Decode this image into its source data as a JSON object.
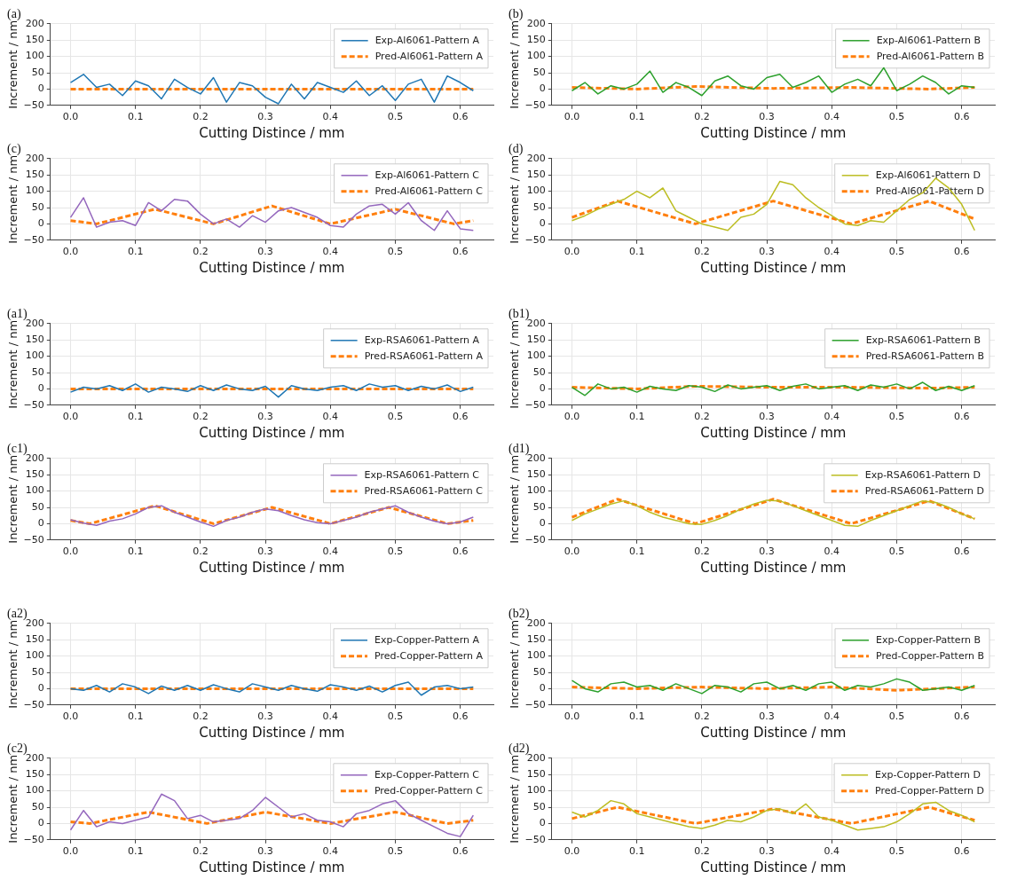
{
  "chart_data": [
    {
      "type": "line",
      "title": "(a)",
      "xlabel": "Cutting Distince / mm",
      "ylabel": "Increment / nm",
      "x": [
        0,
        0.02,
        0.04,
        0.06,
        0.08,
        0.1,
        0.12,
        0.14,
        0.16,
        0.18,
        0.2,
        0.22,
        0.24,
        0.26,
        0.28,
        0.3,
        0.32,
        0.34,
        0.36,
        0.38,
        0.4,
        0.42,
        0.44,
        0.46,
        0.48,
        0.5,
        0.52,
        0.54,
        0.56,
        0.58,
        0.6,
        0.62
      ],
      "xlim": [
        -0.031,
        0.651
      ],
      "xticks": [
        {
          "value": 0,
          "label": "0.0"
        },
        {
          "value": 0.1,
          "label": "0.1"
        },
        {
          "value": 0.2,
          "label": "0.2"
        },
        {
          "value": 0.3,
          "label": "0.3"
        },
        {
          "value": 0.4,
          "label": "0.4"
        },
        {
          "value": 0.5,
          "label": "0.5"
        },
        {
          "value": 0.6,
          "label": "0.6"
        }
      ],
      "ylim": [
        -50,
        200
      ],
      "yticks": [
        -50,
        0,
        50,
        100,
        150,
        200
      ],
      "grid": true,
      "legend": "top right",
      "series": [
        {
          "name": "Exp-Al6061-Pattern A",
          "color": "#1f77b4",
          "line_style": "solid",
          "values": [
            20,
            45,
            5,
            15,
            -20,
            25,
            10,
            -30,
            30,
            5,
            -15,
            35,
            -40,
            20,
            10,
            -25,
            -45,
            15,
            -30,
            20,
            5,
            -10,
            25,
            -20,
            10,
            -35,
            15,
            30,
            -40,
            40,
            20,
            -5
          ]
        },
        {
          "name": "Pred-Al6061-Pattern A",
          "color": "#ff7f0e",
          "line_style": "dashed",
          "x": [
            0,
            0.31,
            0.62
          ],
          "values": [
            0,
            0,
            0
          ]
        }
      ]
    },
    {
      "type": "line",
      "title": "(b)",
      "xlabel": "Cutting Distince / mm",
      "ylabel": "Increment / nm",
      "x": [
        0,
        0.02,
        0.04,
        0.06,
        0.08,
        0.1,
        0.12,
        0.14,
        0.16,
        0.18,
        0.2,
        0.22,
        0.24,
        0.26,
        0.28,
        0.3,
        0.32,
        0.34,
        0.36,
        0.38,
        0.4,
        0.42,
        0.44,
        0.46,
        0.48,
        0.5,
        0.52,
        0.54,
        0.56,
        0.58,
        0.6,
        0.62
      ],
      "xlim": [
        -0.031,
        0.651
      ],
      "xticks": [
        {
          "value": 0,
          "label": "0.0"
        },
        {
          "value": 0.1,
          "label": "0.1"
        },
        {
          "value": 0.2,
          "label": "0.2"
        },
        {
          "value": 0.3,
          "label": "0.3"
        },
        {
          "value": 0.4,
          "label": "0.4"
        },
        {
          "value": 0.5,
          "label": "0.5"
        },
        {
          "value": 0.6,
          "label": "0.6"
        }
      ],
      "ylim": [
        -50,
        200
      ],
      "yticks": [
        -50,
        0,
        50,
        100,
        150,
        200
      ],
      "grid": true,
      "legend": "top right",
      "series": [
        {
          "name": "Exp-Al6061-Pattern B",
          "color": "#2ca02c",
          "line_style": "solid",
          "values": [
            -5,
            20,
            -15,
            10,
            0,
            15,
            55,
            -10,
            20,
            5,
            -20,
            25,
            40,
            10,
            0,
            35,
            45,
            5,
            20,
            40,
            -10,
            15,
            30,
            10,
            65,
            -5,
            15,
            40,
            20,
            -15,
            10,
            5
          ]
        },
        {
          "name": "Pred-Al6061-Pattern B",
          "color": "#ff7f0e",
          "line_style": "dashed",
          "x": [
            0,
            0.1,
            0.19,
            0.31,
            0.43,
            0.55,
            0.62
          ],
          "values": [
            5,
            0,
            8,
            2,
            5,
            0,
            5
          ]
        }
      ]
    },
    {
      "type": "line",
      "title": "(c)",
      "xlabel": "Cutting Distince / mm",
      "ylabel": "Increment / nm",
      "x": [
        0,
        0.02,
        0.04,
        0.06,
        0.08,
        0.1,
        0.12,
        0.14,
        0.16,
        0.18,
        0.2,
        0.22,
        0.24,
        0.26,
        0.28,
        0.3,
        0.32,
        0.34,
        0.36,
        0.38,
        0.4,
        0.42,
        0.44,
        0.46,
        0.48,
        0.5,
        0.52,
        0.54,
        0.56,
        0.58,
        0.6,
        0.62
      ],
      "xlim": [
        -0.031,
        0.651
      ],
      "xticks": [
        {
          "value": 0,
          "label": "0.0"
        },
        {
          "value": 0.1,
          "label": "0.1"
        },
        {
          "value": 0.2,
          "label": "0.2"
        },
        {
          "value": 0.3,
          "label": "0.3"
        },
        {
          "value": 0.4,
          "label": "0.4"
        },
        {
          "value": 0.5,
          "label": "0.5"
        },
        {
          "value": 0.6,
          "label": "0.6"
        }
      ],
      "ylim": [
        -50,
        200
      ],
      "yticks": [
        -50,
        0,
        50,
        100,
        150,
        200
      ],
      "grid": true,
      "legend": "top right",
      "series": [
        {
          "name": "Exp-Al6061-Pattern C",
          "color": "#9467bd",
          "line_style": "solid",
          "values": [
            20,
            80,
            -10,
            5,
            10,
            -5,
            65,
            40,
            75,
            70,
            30,
            0,
            15,
            -10,
            25,
            5,
            40,
            50,
            35,
            20,
            -5,
            -10,
            30,
            55,
            60,
            30,
            65,
            10,
            -20,
            40,
            -15,
            -20
          ]
        },
        {
          "name": "Pred-Al6061-Pattern C",
          "color": "#ff7f0e",
          "line_style": "dashed",
          "x": [
            0,
            0.04,
            0.13,
            0.22,
            0.31,
            0.4,
            0.5,
            0.59,
            0.62
          ],
          "values": [
            10,
            0,
            45,
            0,
            55,
            0,
            45,
            0,
            10
          ]
        }
      ]
    },
    {
      "type": "line",
      "title": "(d)",
      "xlabel": "Cutting Distince / mm",
      "ylabel": "Increment / nm",
      "x": [
        0,
        0.02,
        0.04,
        0.06,
        0.08,
        0.1,
        0.12,
        0.14,
        0.16,
        0.18,
        0.2,
        0.22,
        0.24,
        0.26,
        0.28,
        0.3,
        0.32,
        0.34,
        0.36,
        0.38,
        0.4,
        0.42,
        0.44,
        0.46,
        0.48,
        0.5,
        0.52,
        0.54,
        0.56,
        0.58,
        0.6,
        0.62
      ],
      "xlim": [
        -0.031,
        0.651
      ],
      "xticks": [
        {
          "value": 0,
          "label": "0.0"
        },
        {
          "value": 0.1,
          "label": "0.1"
        },
        {
          "value": 0.2,
          "label": "0.2"
        },
        {
          "value": 0.3,
          "label": "0.3"
        },
        {
          "value": 0.4,
          "label": "0.4"
        },
        {
          "value": 0.5,
          "label": "0.5"
        },
        {
          "value": 0.6,
          "label": "0.6"
        }
      ],
      "ylim": [
        -50,
        200
      ],
      "yticks": [
        -50,
        0,
        50,
        100,
        150,
        200
      ],
      "grid": true,
      "legend": "top right",
      "series": [
        {
          "name": "Exp-Al6061-Pattern D",
          "color": "#bcbd22",
          "line_style": "solid",
          "values": [
            10,
            25,
            45,
            60,
            75,
            100,
            80,
            110,
            40,
            20,
            0,
            -10,
            -20,
            20,
            30,
            60,
            130,
            120,
            80,
            50,
            25,
            0,
            -5,
            10,
            5,
            40,
            75,
            95,
            140,
            110,
            60,
            -20
          ]
        },
        {
          "name": "Pred-Al6061-Pattern D",
          "color": "#ff7f0e",
          "line_style": "dashed",
          "x": [
            0,
            0.07,
            0.19,
            0.31,
            0.43,
            0.55,
            0.62
          ],
          "values": [
            20,
            70,
            0,
            70,
            0,
            70,
            15
          ]
        }
      ]
    },
    {
      "type": "line",
      "title": "(a1)",
      "xlabel": "Cutting Distince / mm",
      "ylabel": "Increment / nm",
      "x": [
        0,
        0.02,
        0.04,
        0.06,
        0.08,
        0.1,
        0.12,
        0.14,
        0.16,
        0.18,
        0.2,
        0.22,
        0.24,
        0.26,
        0.28,
        0.3,
        0.32,
        0.34,
        0.36,
        0.38,
        0.4,
        0.42,
        0.44,
        0.46,
        0.48,
        0.5,
        0.52,
        0.54,
        0.56,
        0.58,
        0.6,
        0.62
      ],
      "xlim": [
        -0.031,
        0.651
      ],
      "xticks": [
        {
          "value": 0,
          "label": "0.0"
        },
        {
          "value": 0.1,
          "label": "0.1"
        },
        {
          "value": 0.2,
          "label": "0.2"
        },
        {
          "value": 0.3,
          "label": "0.3"
        },
        {
          "value": 0.4,
          "label": "0.4"
        },
        {
          "value": 0.5,
          "label": "0.5"
        },
        {
          "value": 0.6,
          "label": "0.6"
        }
      ],
      "ylim": [
        -50,
        200
      ],
      "yticks": [
        -50,
        0,
        50,
        100,
        150,
        200
      ],
      "grid": true,
      "legend": "top right",
      "series": [
        {
          "name": "Exp-RSA6061-Pattern A",
          "color": "#1f77b4",
          "line_style": "solid",
          "values": [
            -10,
            5,
            0,
            10,
            -5,
            15,
            -10,
            5,
            0,
            -8,
            10,
            -5,
            12,
            0,
            -5,
            8,
            -25,
            10,
            0,
            -5,
            5,
            10,
            -5,
            15,
            5,
            10,
            -5,
            8,
            0,
            12,
            -8,
            5
          ]
        },
        {
          "name": "Pred-RSA6061-Pattern A",
          "color": "#ff7f0e",
          "line_style": "dashed",
          "x": [
            0,
            0.31,
            0.62
          ],
          "values": [
            0,
            0,
            0
          ]
        }
      ]
    },
    {
      "type": "line",
      "title": "(b1)",
      "xlabel": "Cutting Distince / mm",
      "ylabel": "Increment / nm",
      "x": [
        0,
        0.02,
        0.04,
        0.06,
        0.08,
        0.1,
        0.12,
        0.14,
        0.16,
        0.18,
        0.2,
        0.22,
        0.24,
        0.26,
        0.28,
        0.3,
        0.32,
        0.34,
        0.36,
        0.38,
        0.4,
        0.42,
        0.44,
        0.46,
        0.48,
        0.5,
        0.52,
        0.54,
        0.56,
        0.58,
        0.6,
        0.62
      ],
      "xlim": [
        -0.031,
        0.651
      ],
      "xticks": [
        {
          "value": 0,
          "label": "0.0"
        },
        {
          "value": 0.1,
          "label": "0.1"
        },
        {
          "value": 0.2,
          "label": "0.2"
        },
        {
          "value": 0.3,
          "label": "0.3"
        },
        {
          "value": 0.4,
          "label": "0.4"
        },
        {
          "value": 0.5,
          "label": "0.5"
        },
        {
          "value": 0.6,
          "label": "0.6"
        }
      ],
      "ylim": [
        -50,
        200
      ],
      "yticks": [
        -50,
        0,
        50,
        100,
        150,
        200
      ],
      "grid": true,
      "legend": "top right",
      "series": [
        {
          "name": "Exp-RSA6061-Pattern B",
          "color": "#2ca02c",
          "line_style": "solid",
          "values": [
            5,
            -20,
            15,
            0,
            5,
            -10,
            8,
            0,
            -5,
            10,
            5,
            -8,
            12,
            0,
            5,
            10,
            -5,
            8,
            15,
            0,
            5,
            10,
            -5,
            12,
            5,
            15,
            0,
            20,
            -5,
            8,
            -5,
            10
          ]
        },
        {
          "name": "Pred-RSA6061-Pattern B",
          "color": "#ff7f0e",
          "line_style": "dashed",
          "x": [
            0,
            0.1,
            0.19,
            0.31,
            0.43,
            0.55,
            0.62
          ],
          "values": [
            5,
            0,
            8,
            5,
            5,
            2,
            5
          ]
        }
      ]
    },
    {
      "type": "line",
      "title": "(c1)",
      "xlabel": "Cutting Distince / mm",
      "ylabel": "Increment / nm",
      "x": [
        0,
        0.02,
        0.04,
        0.06,
        0.08,
        0.1,
        0.12,
        0.14,
        0.16,
        0.18,
        0.2,
        0.22,
        0.24,
        0.26,
        0.28,
        0.3,
        0.32,
        0.34,
        0.36,
        0.38,
        0.4,
        0.42,
        0.44,
        0.46,
        0.48,
        0.5,
        0.52,
        0.54,
        0.56,
        0.58,
        0.6,
        0.62
      ],
      "xlim": [
        -0.031,
        0.651
      ],
      "xticks": [
        {
          "value": 0,
          "label": "0.0"
        },
        {
          "value": 0.1,
          "label": "0.1"
        },
        {
          "value": 0.2,
          "label": "0.2"
        },
        {
          "value": 0.3,
          "label": "0.3"
        },
        {
          "value": 0.4,
          "label": "0.4"
        },
        {
          "value": 0.5,
          "label": "0.5"
        },
        {
          "value": 0.6,
          "label": "0.6"
        }
      ],
      "ylim": [
        -50,
        200
      ],
      "yticks": [
        -50,
        0,
        50,
        100,
        150,
        200
      ],
      "grid": true,
      "legend": "top right",
      "series": [
        {
          "name": "Exp-RSA6061-Pattern C",
          "color": "#9467bd",
          "line_style": "solid",
          "values": [
            12,
            2,
            -5,
            8,
            15,
            30,
            50,
            55,
            35,
            20,
            5,
            -8,
            10,
            20,
            35,
            45,
            40,
            25,
            12,
            3,
            0,
            10,
            20,
            35,
            45,
            55,
            35,
            20,
            8,
            0,
            5,
            20
          ]
        },
        {
          "name": "Pred-RSA6061-Pattern C",
          "color": "#ff7f0e",
          "line_style": "dashed",
          "x": [
            0,
            0.03,
            0.13,
            0.22,
            0.31,
            0.4,
            0.49,
            0.58,
            0.62
          ],
          "values": [
            10,
            0,
            55,
            0,
            50,
            0,
            50,
            0,
            10
          ]
        }
      ]
    },
    {
      "type": "line",
      "title": "(d1)",
      "xlabel": "Cutting Distince / mm",
      "ylabel": "Increment / nm",
      "x": [
        0,
        0.02,
        0.04,
        0.06,
        0.08,
        0.1,
        0.12,
        0.14,
        0.16,
        0.18,
        0.2,
        0.22,
        0.24,
        0.26,
        0.28,
        0.3,
        0.32,
        0.34,
        0.36,
        0.38,
        0.4,
        0.42,
        0.44,
        0.46,
        0.48,
        0.5,
        0.52,
        0.54,
        0.56,
        0.58,
        0.6,
        0.62
      ],
      "xlim": [
        -0.031,
        0.651
      ],
      "xticks": [
        {
          "value": 0,
          "label": "0.0"
        },
        {
          "value": 0.1,
          "label": "0.1"
        },
        {
          "value": 0.2,
          "label": "0.2"
        },
        {
          "value": 0.3,
          "label": "0.3"
        },
        {
          "value": 0.4,
          "label": "0.4"
        },
        {
          "value": 0.5,
          "label": "0.5"
        },
        {
          "value": 0.6,
          "label": "0.6"
        }
      ],
      "ylim": [
        -50,
        200
      ],
      "yticks": [
        -50,
        0,
        50,
        100,
        150,
        200
      ],
      "grid": true,
      "legend": "top right",
      "series": [
        {
          "name": "Exp-RSA6061-Pattern D",
          "color": "#bcbd22",
          "line_style": "solid",
          "values": [
            10,
            30,
            45,
            60,
            70,
            55,
            35,
            20,
            10,
            0,
            -2,
            10,
            25,
            45,
            60,
            72,
            70,
            55,
            40,
            25,
            10,
            -5,
            -8,
            10,
            25,
            40,
            55,
            70,
            65,
            50,
            30,
            15
          ]
        },
        {
          "name": "Pred-RSA6061-Pattern D",
          "color": "#ff7f0e",
          "line_style": "dashed",
          "x": [
            0,
            0.07,
            0.19,
            0.31,
            0.43,
            0.55,
            0.62
          ],
          "values": [
            20,
            75,
            0,
            75,
            0,
            70,
            15
          ]
        }
      ]
    },
    {
      "type": "line",
      "title": "(a2)",
      "xlabel": "Cutting Distince / mm",
      "ylabel": "Increment / nm",
      "x": [
        0,
        0.02,
        0.04,
        0.06,
        0.08,
        0.1,
        0.12,
        0.14,
        0.16,
        0.18,
        0.2,
        0.22,
        0.24,
        0.26,
        0.28,
        0.3,
        0.32,
        0.34,
        0.36,
        0.38,
        0.4,
        0.42,
        0.44,
        0.46,
        0.48,
        0.5,
        0.52,
        0.54,
        0.56,
        0.58,
        0.6,
        0.62
      ],
      "xlim": [
        -0.031,
        0.651
      ],
      "xticks": [
        {
          "value": 0,
          "label": "0.0"
        },
        {
          "value": 0.1,
          "label": "0.1"
        },
        {
          "value": 0.2,
          "label": "0.2"
        },
        {
          "value": 0.3,
          "label": "0.3"
        },
        {
          "value": 0.4,
          "label": "0.4"
        },
        {
          "value": 0.5,
          "label": "0.5"
        },
        {
          "value": 0.6,
          "label": "0.6"
        }
      ],
      "ylim": [
        -50,
        200
      ],
      "yticks": [
        -50,
        0,
        50,
        100,
        150,
        200
      ],
      "grid": true,
      "legend": "top right",
      "series": [
        {
          "name": "Exp-Copper-Pattern A",
          "color": "#1f77b4",
          "line_style": "solid",
          "values": [
            0,
            -5,
            10,
            -10,
            15,
            5,
            -15,
            8,
            -5,
            10,
            -5,
            12,
            0,
            -10,
            15,
            5,
            -5,
            10,
            0,
            -8,
            12,
            5,
            -5,
            8,
            -10,
            10,
            20,
            -20,
            5,
            10,
            0,
            5
          ]
        },
        {
          "name": "Pred-Copper-Pattern A",
          "color": "#ff7f0e",
          "line_style": "dashed",
          "x": [
            0,
            0.31,
            0.62
          ],
          "values": [
            0,
            0,
            0
          ]
        }
      ]
    },
    {
      "type": "line",
      "title": "(b2)",
      "xlabel": "Cutting Distince / mm",
      "ylabel": "Increment / nm",
      "x": [
        0,
        0.02,
        0.04,
        0.06,
        0.08,
        0.1,
        0.12,
        0.14,
        0.16,
        0.18,
        0.2,
        0.22,
        0.24,
        0.26,
        0.28,
        0.3,
        0.32,
        0.34,
        0.36,
        0.38,
        0.4,
        0.42,
        0.44,
        0.46,
        0.48,
        0.5,
        0.52,
        0.54,
        0.56,
        0.58,
        0.6,
        0.62
      ],
      "xlim": [
        -0.031,
        0.651
      ],
      "xticks": [
        {
          "value": 0,
          "label": "0.0"
        },
        {
          "value": 0.1,
          "label": "0.1"
        },
        {
          "value": 0.2,
          "label": "0.2"
        },
        {
          "value": 0.3,
          "label": "0.3"
        },
        {
          "value": 0.4,
          "label": "0.4"
        },
        {
          "value": 0.5,
          "label": "0.5"
        },
        {
          "value": 0.6,
          "label": "0.6"
        }
      ],
      "ylim": [
        -50,
        200
      ],
      "yticks": [
        -50,
        0,
        50,
        100,
        150,
        200
      ],
      "grid": true,
      "legend": "top right",
      "series": [
        {
          "name": "Exp-Copper-Pattern B",
          "color": "#2ca02c",
          "line_style": "solid",
          "values": [
            25,
            0,
            -10,
            15,
            20,
            5,
            10,
            -5,
            15,
            0,
            -15,
            10,
            5,
            -10,
            15,
            20,
            0,
            10,
            -5,
            15,
            20,
            -5,
            10,
            5,
            15,
            30,
            20,
            -5,
            0,
            5,
            -5,
            10
          ]
        },
        {
          "name": "Pred-Copper-Pattern B",
          "color": "#ff7f0e",
          "line_style": "dashed",
          "x": [
            0,
            0.1,
            0.2,
            0.3,
            0.4,
            0.5,
            0.62
          ],
          "values": [
            5,
            0,
            5,
            0,
            5,
            -5,
            5
          ]
        }
      ]
    },
    {
      "type": "line",
      "title": "(c2)",
      "xlabel": "Cutting Distince / mm",
      "ylabel": "Increment / nm",
      "x": [
        0,
        0.02,
        0.04,
        0.06,
        0.08,
        0.1,
        0.12,
        0.14,
        0.16,
        0.18,
        0.2,
        0.22,
        0.24,
        0.26,
        0.28,
        0.3,
        0.32,
        0.34,
        0.36,
        0.38,
        0.4,
        0.42,
        0.44,
        0.46,
        0.48,
        0.5,
        0.52,
        0.54,
        0.56,
        0.58,
        0.6,
        0.62
      ],
      "xlim": [
        -0.031,
        0.651
      ],
      "xticks": [
        {
          "value": 0,
          "label": "0.0"
        },
        {
          "value": 0.1,
          "label": "0.1"
        },
        {
          "value": 0.2,
          "label": "0.2"
        },
        {
          "value": 0.3,
          "label": "0.3"
        },
        {
          "value": 0.4,
          "label": "0.4"
        },
        {
          "value": 0.5,
          "label": "0.5"
        },
        {
          "value": 0.6,
          "label": "0.6"
        }
      ],
      "ylim": [
        -50,
        200
      ],
      "yticks": [
        -50,
        0,
        50,
        100,
        150,
        200
      ],
      "grid": true,
      "legend": "top right",
      "series": [
        {
          "name": "Exp-Copper-Pattern C",
          "color": "#9467bd",
          "line_style": "solid",
          "values": [
            -20,
            40,
            -10,
            5,
            0,
            10,
            20,
            90,
            70,
            15,
            25,
            5,
            10,
            15,
            40,
            80,
            50,
            20,
            30,
            10,
            5,
            -10,
            30,
            40,
            60,
            70,
            30,
            10,
            -10,
            -30,
            -40,
            25
          ]
        },
        {
          "name": "Pred-Copper-Pattern C",
          "color": "#ff7f0e",
          "line_style": "dashed",
          "x": [
            0,
            0.03,
            0.12,
            0.21,
            0.3,
            0.4,
            0.5,
            0.58,
            0.62
          ],
          "values": [
            5,
            0,
            35,
            0,
            35,
            0,
            35,
            0,
            10
          ]
        }
      ]
    },
    {
      "type": "line",
      "title": "(d2)",
      "xlabel": "Cutting Distince / mm",
      "ylabel": "Increment / nm",
      "x": [
        0,
        0.02,
        0.04,
        0.06,
        0.08,
        0.1,
        0.12,
        0.14,
        0.16,
        0.18,
        0.2,
        0.22,
        0.24,
        0.26,
        0.28,
        0.3,
        0.32,
        0.34,
        0.36,
        0.38,
        0.4,
        0.42,
        0.44,
        0.46,
        0.48,
        0.5,
        0.52,
        0.54,
        0.56,
        0.58,
        0.6,
        0.62
      ],
      "xlim": [
        -0.031,
        0.651
      ],
      "xticks": [
        {
          "value": 0,
          "label": "0.0"
        },
        {
          "value": 0.1,
          "label": "0.1"
        },
        {
          "value": 0.2,
          "label": "0.2"
        },
        {
          "value": 0.3,
          "label": "0.3"
        },
        {
          "value": 0.4,
          "label": "0.4"
        },
        {
          "value": 0.5,
          "label": "0.5"
        },
        {
          "value": 0.6,
          "label": "0.6"
        }
      ],
      "ylim": [
        -50,
        200
      ],
      "yticks": [
        -50,
        0,
        50,
        100,
        150,
        200
      ],
      "grid": true,
      "legend": "top right",
      "series": [
        {
          "name": "Exp-Copper-Pattern D",
          "color": "#bcbd22",
          "line_style": "solid",
          "values": [
            35,
            20,
            40,
            70,
            60,
            30,
            20,
            10,
            0,
            -10,
            -15,
            -5,
            10,
            5,
            20,
            40,
            45,
            30,
            60,
            20,
            10,
            -5,
            -20,
            -15,
            -10,
            5,
            30,
            60,
            65,
            40,
            25,
            5
          ]
        },
        {
          "name": "Pred-Copper-Pattern D",
          "color": "#ff7f0e",
          "line_style": "dashed",
          "x": [
            0,
            0.07,
            0.19,
            0.31,
            0.43,
            0.55,
            0.62
          ],
          "values": [
            15,
            50,
            0,
            45,
            0,
            50,
            10
          ]
        }
      ]
    }
  ]
}
